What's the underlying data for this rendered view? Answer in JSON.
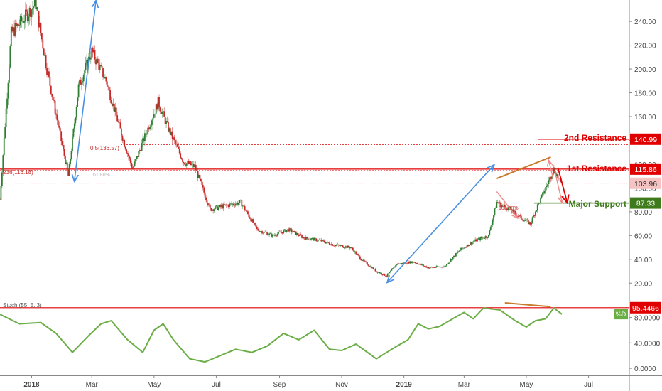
{
  "colors": {
    "up": "#2e7d32",
    "down": "#c62828",
    "resistance": "#e00000",
    "support": "#3d7a1c",
    "stoch": "#6aae45",
    "arrow_blue": "#4a90e2",
    "trend_orange": "#c97a2b",
    "pink": "#f08a8a",
    "grid_label": "#444444"
  },
  "chart_data": [
    {
      "type": "candlestick",
      "ylim": [
        10,
        258
      ],
      "y_ticks": [
        "20.00",
        "40.00",
        "60.00",
        "80.00",
        "100.00",
        "120.00",
        "140.00",
        "160.00",
        "180.00",
        "200.00",
        "220.00",
        "240.00"
      ],
      "x_ticks": [
        "2018",
        "Mar",
        "May",
        "Jul",
        "Sep",
        "Nov",
        "2019",
        "Mar",
        "May",
        "Jul"
      ],
      "x_tick_dates": [
        "2018-01-01",
        "2018-03-01",
        "2018-05-01",
        "2018-07-01",
        "2018-09-01",
        "2018-11-01",
        "2019-01-01",
        "2019-03-01",
        "2019-05-01",
        "2019-07-01"
      ],
      "price_path": [
        [
          "2017-12-01",
          90
        ],
        [
          "2017-12-12",
          230
        ],
        [
          "2017-12-22",
          240
        ],
        [
          "2018-01-05",
          255
        ],
        [
          "2018-01-16",
          200
        ],
        [
          "2018-02-06",
          110
        ],
        [
          "2018-02-16",
          185
        ],
        [
          "2018-03-01",
          215
        ],
        [
          "2018-03-15",
          190
        ],
        [
          "2018-04-01",
          140
        ],
        [
          "2018-04-10",
          116
        ],
        [
          "2018-04-25",
          150
        ],
        [
          "2018-05-05",
          172
        ],
        [
          "2018-05-15",
          150
        ],
        [
          "2018-05-30",
          122
        ],
        [
          "2018-06-10",
          118
        ],
        [
          "2018-06-25",
          82
        ],
        [
          "2018-07-10",
          85
        ],
        [
          "2018-07-25",
          88
        ],
        [
          "2018-08-10",
          65
        ],
        [
          "2018-08-25",
          60
        ],
        [
          "2018-09-10",
          65
        ],
        [
          "2018-09-25",
          58
        ],
        [
          "2018-10-10",
          56
        ],
        [
          "2018-10-25",
          52
        ],
        [
          "2018-11-10",
          50
        ],
        [
          "2018-11-20",
          40
        ],
        [
          "2018-12-05",
          30
        ],
        [
          "2018-12-15",
          26
        ],
        [
          "2018-12-25",
          36
        ],
        [
          "2019-01-10",
          38
        ],
        [
          "2019-01-25",
          33
        ],
        [
          "2019-02-10",
          34
        ],
        [
          "2019-02-25",
          48
        ],
        [
          "2019-03-10",
          55
        ],
        [
          "2019-03-25",
          60
        ],
        [
          "2019-04-02",
          88
        ],
        [
          "2019-04-15",
          82
        ],
        [
          "2019-04-25",
          75
        ],
        [
          "2019-05-05",
          70
        ],
        [
          "2019-05-12",
          85
        ],
        [
          "2019-05-20",
          100
        ],
        [
          "2019-05-28",
          116
        ],
        [
          "2019-06-04",
          104
        ]
      ],
      "annotations": {
        "fib_upper_label": "0.5(136.57)",
        "fib_lower_label": ".236(116.18)",
        "fib_mid_label": "61.80%",
        "fib_100_label": "100.00%"
      },
      "levels": [
        {
          "label": "2nd Resistance",
          "badge": "140.99",
          "value": 140.99
        },
        {
          "label": "1st Resistance",
          "badge": "115.86",
          "value": 115.86
        },
        {
          "label": "",
          "badge": "103.96",
          "value": 103.96
        },
        {
          "label": "Major Support",
          "badge": "87.33",
          "value": 87.33
        }
      ]
    },
    {
      "type": "line",
      "title": "Stoch (55, 5, 3)",
      "ylim": [
        -10,
        112
      ],
      "y_ticks": [
        "0.0000",
        "40.0000",
        "80.0000"
      ],
      "level_badge": "95.4466",
      "level_value": 95.4466,
      "series_badge": "%D",
      "series": [
        {
          "name": "%D",
          "points": [
            [
              "2017-12-01",
              85
            ],
            [
              "2017-12-20",
              70
            ],
            [
              "2018-01-10",
              72
            ],
            [
              "2018-01-25",
              55
            ],
            [
              "2018-02-10",
              25
            ],
            [
              "2018-02-25",
              50
            ],
            [
              "2018-03-10",
              70
            ],
            [
              "2018-03-20",
              75
            ],
            [
              "2018-04-05",
              45
            ],
            [
              "2018-04-20",
              25
            ],
            [
              "2018-05-01",
              60
            ],
            [
              "2018-05-10",
              70
            ],
            [
              "2018-05-20",
              45
            ],
            [
              "2018-06-05",
              15
            ],
            [
              "2018-06-20",
              10
            ],
            [
              "2018-07-05",
              20
            ],
            [
              "2018-07-20",
              30
            ],
            [
              "2018-08-05",
              25
            ],
            [
              "2018-08-20",
              35
            ],
            [
              "2018-09-05",
              55
            ],
            [
              "2018-09-20",
              45
            ],
            [
              "2018-10-05",
              60
            ],
            [
              "2018-10-20",
              30
            ],
            [
              "2018-11-01",
              28
            ],
            [
              "2018-11-15",
              38
            ],
            [
              "2018-12-05",
              15
            ],
            [
              "2018-12-20",
              30
            ],
            [
              "2019-01-05",
              45
            ],
            [
              "2019-01-15",
              70
            ],
            [
              "2019-01-25",
              62
            ],
            [
              "2019-02-05",
              66
            ],
            [
              "2019-02-20",
              80
            ],
            [
              "2019-03-01",
              88
            ],
            [
              "2019-03-10",
              78
            ],
            [
              "2019-03-20",
              95
            ],
            [
              "2019-04-05",
              92
            ],
            [
              "2019-04-20",
              75
            ],
            [
              "2019-05-01",
              65
            ],
            [
              "2019-05-10",
              75
            ],
            [
              "2019-05-20",
              78
            ],
            [
              "2019-05-28",
              95
            ],
            [
              "2019-06-05",
              85
            ]
          ]
        }
      ]
    }
  ]
}
